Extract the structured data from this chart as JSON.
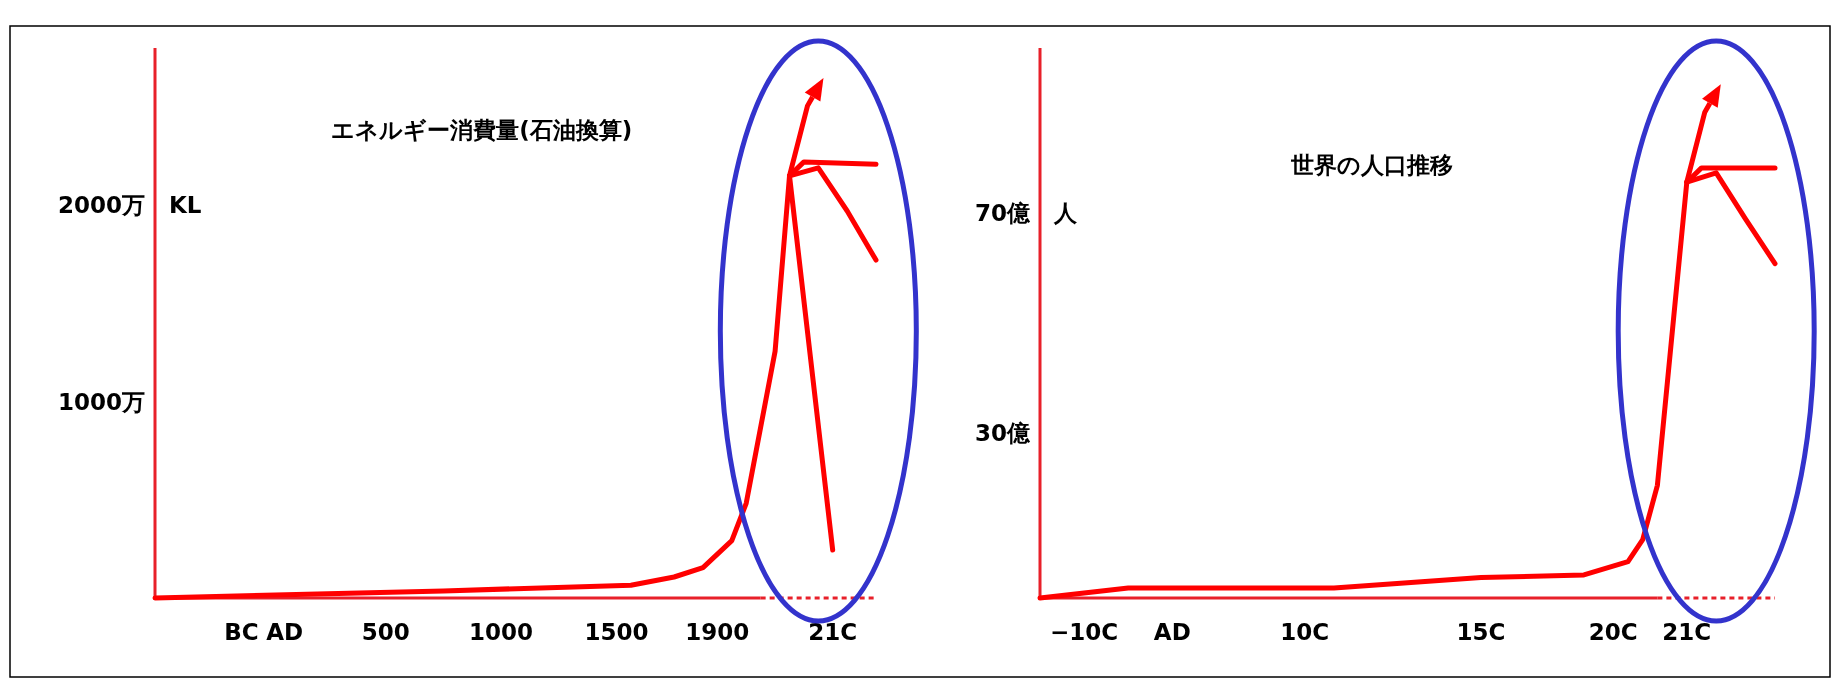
{
  "chart_data": [
    {
      "type": "line",
      "title": "エネルギー消費量(石油換算)",
      "ylabel": "KL",
      "categories": [
        null,
        null,
        null,
        null,
        null,
        null,
        "BC",
        null,
        null,
        "AD",
        null,
        null,
        null,
        null,
        null,
        null,
        "500",
        null,
        null,
        null,
        null,
        null,
        null,
        null,
        "1000",
        null,
        null,
        null,
        null,
        null,
        null,
        null,
        "1500",
        null,
        null,
        null,
        null,
        null,
        null,
        "1900",
        null,
        null,
        null,
        null,
        null,
        null,
        null,
        "21C",
        null,
        null,
        null
      ],
      "ylim": [
        0,
        2800
      ],
      "yticks": [
        {
          "value": 1000,
          "label": "1000万"
        },
        {
          "value": 2000,
          "label": "2000万"
        }
      ],
      "series": [
        {
          "color": "#ff0000",
          "values": [
            0,
            null,
            null,
            null,
            null,
            null,
            null,
            null,
            null,
            null,
            null,
            null,
            null,
            null,
            null,
            null,
            null,
            null,
            null,
            null,
            36,
            null,
            null,
            null,
            null,
            null,
            null,
            null,
            null,
            null,
            null,
            null,
            null,
            65,
            null,
            null,
            107,
            null,
            155,
            null,
            292,
            482,
            null,
            1256,
            2149,
            null,
            null,
            null,
            null,
            null,
            null
          ]
        },
        {
          "color": "#ff0000",
          "values": [
            null,
            null,
            null,
            null,
            null,
            null,
            null,
            null,
            null,
            null,
            null,
            null,
            null,
            null,
            null,
            null,
            null,
            null,
            null,
            null,
            null,
            null,
            null,
            null,
            null,
            null,
            null,
            null,
            null,
            null,
            null,
            null,
            null,
            null,
            null,
            null,
            null,
            null,
            null,
            null,
            null,
            null,
            null,
            null,
            2149,
            null,
            null,
            244,
            null,
            null,
            null
          ]
        },
        {
          "color": "#ff0000",
          "values": [
            null,
            null,
            null,
            null,
            null,
            null,
            null,
            null,
            null,
            null,
            null,
            null,
            null,
            null,
            null,
            null,
            null,
            null,
            null,
            null,
            null,
            null,
            null,
            null,
            null,
            null,
            null,
            null,
            null,
            null,
            null,
            null,
            null,
            null,
            null,
            null,
            null,
            null,
            null,
            null,
            null,
            null,
            null,
            null,
            2149,
            2220,
            null,
            null,
            null,
            null,
            2208
          ]
        },
        {
          "color": "#ff0000",
          "values": [
            null,
            null,
            null,
            null,
            null,
            null,
            null,
            null,
            null,
            null,
            null,
            null,
            null,
            null,
            null,
            null,
            null,
            null,
            null,
            null,
            null,
            null,
            null,
            null,
            null,
            null,
            null,
            null,
            null,
            null,
            null,
            null,
            null,
            null,
            null,
            null,
            null,
            null,
            null,
            null,
            null,
            null,
            null,
            null,
            2149,
            null,
            2190,
            null,
            1970,
            null,
            1720
          ]
        }
      ]
    },
    {
      "type": "line",
      "title": "世界の人口推移",
      "ylabel": "人",
      "categories": [
        null,
        null,
        null,
        "−10C",
        null,
        null,
        null,
        null,
        null,
        "AD",
        null,
        null,
        null,
        null,
        null,
        null,
        null,
        null,
        "10C",
        null,
        null,
        null,
        null,
        null,
        null,
        null,
        null,
        null,
        null,
        null,
        "15C",
        null,
        null,
        null,
        null,
        null,
        null,
        null,
        null,
        "20C",
        null,
        null,
        null,
        null,
        "21C",
        null,
        null,
        null,
        null,
        null,
        null
      ],
      "ylim": [
        0,
        100
      ],
      "yticks": [
        {
          "value": 30,
          "label": "30億"
        },
        {
          "value": 70,
          "label": "70億"
        }
      ],
      "series": [
        {
          "color": "#ff0000",
          "values": [
            0,
            null,
            null,
            null,
            null,
            null,
            1.8,
            null,
            null,
            null,
            null,
            null,
            null,
            null,
            null,
            null,
            null,
            null,
            null,
            null,
            1.8,
            null,
            null,
            null,
            null,
            null,
            null,
            null,
            null,
            null,
            3.7,
            null,
            null,
            null,
            null,
            null,
            null,
            4.2,
            null,
            null,
            6.6,
            10.6,
            20.5,
            null,
            75.6,
            null,
            null,
            null,
            null,
            null,
            null
          ]
        },
        {
          "color": "#ff0000",
          "values": [
            null,
            null,
            null,
            null,
            null,
            null,
            null,
            null,
            null,
            null,
            null,
            null,
            null,
            null,
            null,
            null,
            null,
            null,
            null,
            null,
            null,
            null,
            null,
            null,
            null,
            null,
            null,
            null,
            null,
            null,
            null,
            null,
            null,
            null,
            null,
            null,
            null,
            null,
            null,
            null,
            null,
            null,
            null,
            null,
            75.6,
            78.2,
            null,
            null,
            null,
            null,
            78.2
          ]
        },
        {
          "color": "#ff0000",
          "values": [
            null,
            null,
            null,
            null,
            null,
            null,
            null,
            null,
            null,
            null,
            null,
            null,
            null,
            null,
            null,
            null,
            null,
            null,
            null,
            null,
            null,
            null,
            null,
            null,
            null,
            null,
            null,
            null,
            null,
            null,
            null,
            null,
            null,
            null,
            null,
            null,
            null,
            null,
            null,
            null,
            null,
            null,
            null,
            null,
            75.6,
            null,
            77.3,
            null,
            68.9,
            null,
            60.8
          ]
        }
      ]
    }
  ]
}
